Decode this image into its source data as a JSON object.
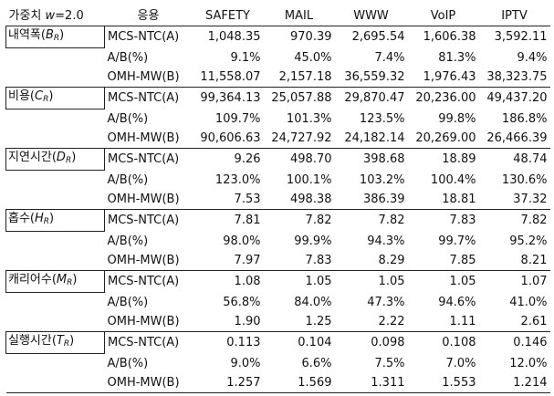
{
  "header": {
    "corner_text": "가중치 ",
    "corner_w": "w",
    "corner_value": "=2.0",
    "columns": [
      "응용",
      "SAFETY",
      "MAIL",
      "WWW",
      "VoIP",
      "IPTV"
    ]
  },
  "groups": [
    {
      "label": "내역폭(",
      "symbol": "B",
      "sub": "R",
      "close": ")",
      "rows": [
        {
          "method": "MCS-NTC(A)",
          "values": [
            "1,048.35",
            "970.39",
            "2,695.54",
            "1,606.38",
            "3,592.11"
          ]
        },
        {
          "method": "A/B(%)",
          "values": [
            "9.1%",
            "45.0%",
            "7.4%",
            "81.3%",
            "9.4%"
          ]
        },
        {
          "method": "OMH-MW(B)",
          "values": [
            "11,558.07",
            "2,157.18",
            "36,559.32",
            "1,976.43",
            "38,323.75"
          ]
        }
      ]
    },
    {
      "label": "비용(",
      "symbol": "C",
      "sub": "R",
      "close": ")",
      "rows": [
        {
          "method": "MCS-NTC(A)",
          "values": [
            "99,364.13",
            "25,057.88",
            "29,870.47",
            "20,236.00",
            "49,437.20"
          ]
        },
        {
          "method": "A/B(%)",
          "values": [
            "109.7%",
            "101.3%",
            "123.5%",
            "99.8%",
            "186.8%"
          ]
        },
        {
          "method": "OMH-MW(B)",
          "values": [
            "90,606.63",
            "24,727.92",
            "24,182.14",
            "20,269.00",
            "26,466.39"
          ]
        }
      ]
    },
    {
      "label": "지연시간(",
      "symbol": "D",
      "sub": "R",
      "close": ")",
      "rows": [
        {
          "method": "MCS-NTC(A)",
          "values": [
            "9.26",
            "498.70",
            "398.68",
            "18.89",
            "48.74"
          ]
        },
        {
          "method": "A/B(%)",
          "values": [
            "123.0%",
            "100.1%",
            "103.2%",
            "100.4%",
            "130.6%"
          ]
        },
        {
          "method": "OMH-MW(B)",
          "values": [
            "7.53",
            "498.38",
            "386.39",
            "18.81",
            "37.32"
          ]
        }
      ]
    },
    {
      "label": "홉수(",
      "symbol": "H",
      "sub": "R",
      "close": ")",
      "rows": [
        {
          "method": "MCS-NTC(A)",
          "values": [
            "7.81",
            "7.82",
            "7.82",
            "7.83",
            "7.82"
          ]
        },
        {
          "method": "A/B(%)",
          "values": [
            "98.0%",
            "99.9%",
            "94.3%",
            "99.7%",
            "95.2%"
          ]
        },
        {
          "method": "OMH-MW(B)",
          "values": [
            "7.97",
            "7.83",
            "8.29",
            "7.85",
            "8.21"
          ]
        }
      ]
    },
    {
      "label": "캐리어수(",
      "symbol": "M",
      "sub": "R",
      "close": ")",
      "rows": [
        {
          "method": "MCS-NTC(A)",
          "values": [
            "1.08",
            "1.05",
            "1.05",
            "1.05",
            "1.07"
          ]
        },
        {
          "method": "A/B(%)",
          "values": [
            "56.8%",
            "84.0%",
            "47.3%",
            "94.6%",
            "41.0%"
          ]
        },
        {
          "method": "OMH-MW(B)",
          "values": [
            "1.90",
            "1.25",
            "2.22",
            "1.11",
            "2.61"
          ]
        }
      ]
    },
    {
      "label": "실행시간(",
      "symbol": "T",
      "sub": "R",
      "close": ")",
      "rows": [
        {
          "method": "MCS-NTC(A)",
          "values": [
            "0.113",
            "0.104",
            "0.098",
            "0.108",
            "0.146"
          ]
        },
        {
          "method": "A/B(%)",
          "values": [
            "9.0%",
            "6.6%",
            "7.5%",
            "7.0%",
            "12.0%"
          ]
        },
        {
          "method": "OMH-MW(B)",
          "values": [
            "1.257",
            "1.569",
            "1.311",
            "1.553",
            "1.214"
          ]
        }
      ]
    }
  ]
}
